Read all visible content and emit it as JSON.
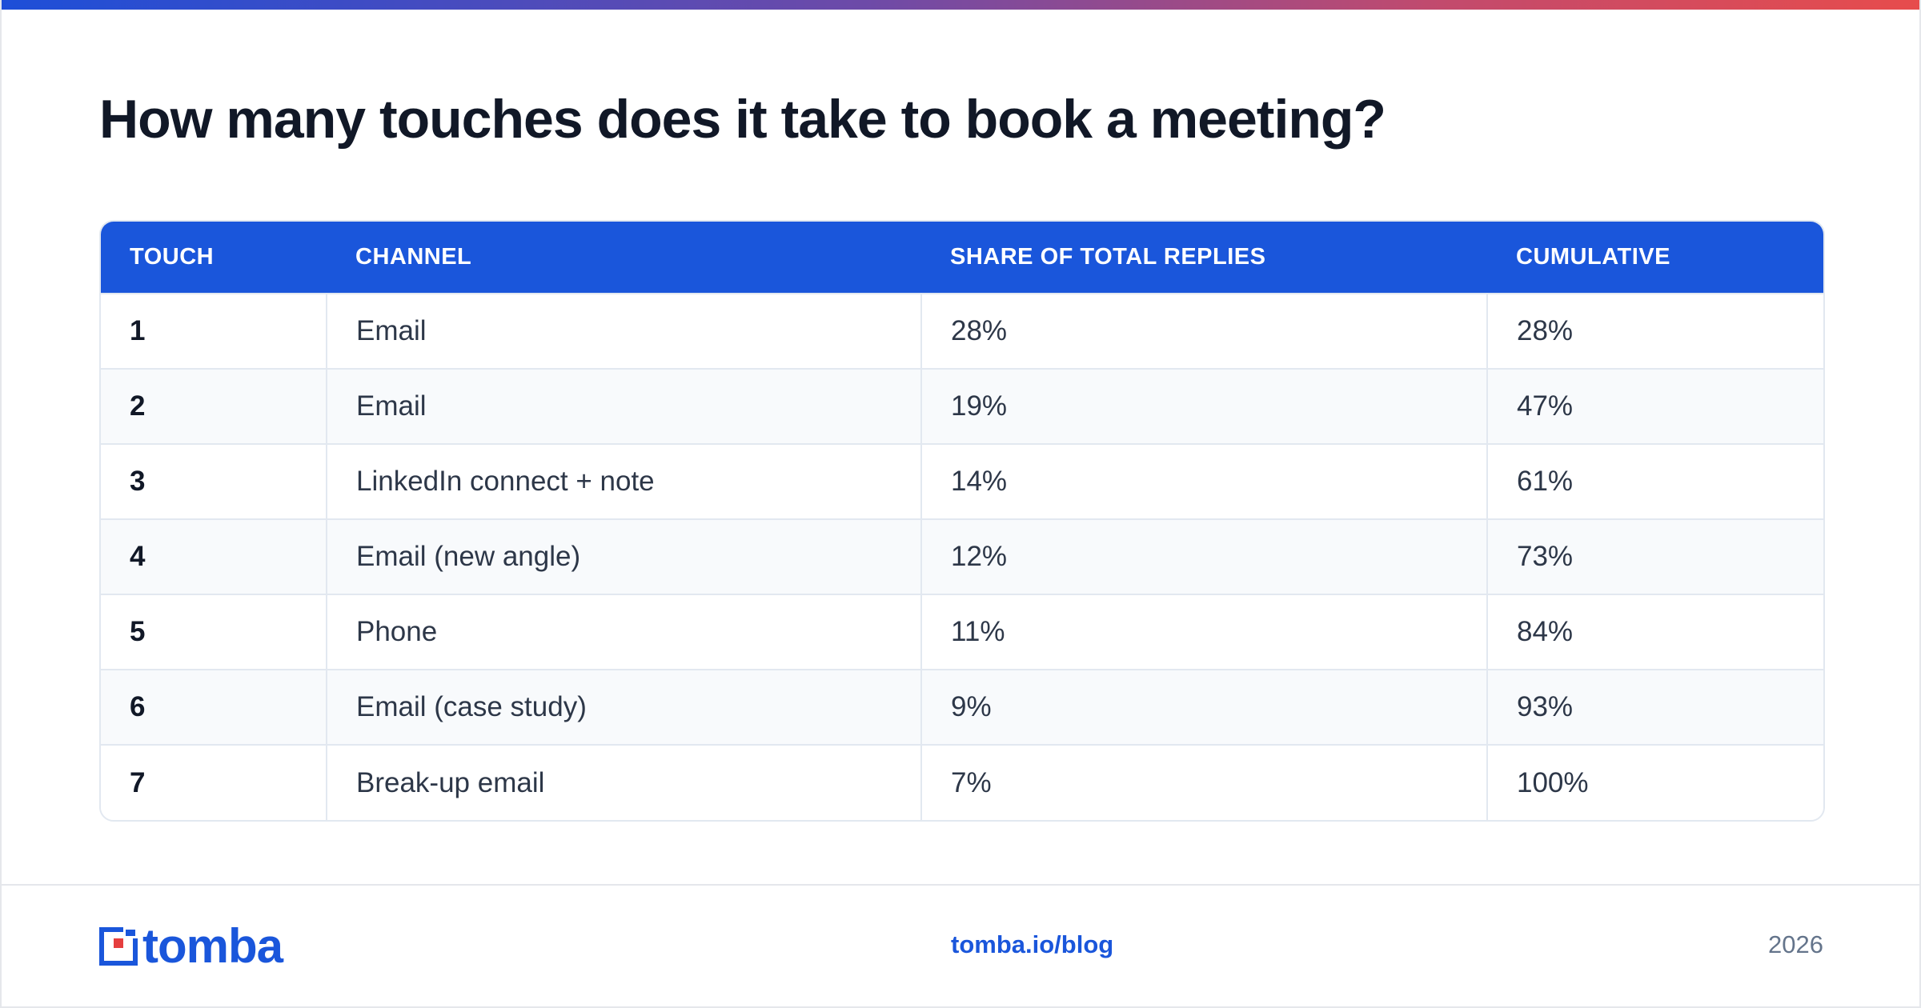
{
  "title": "How many touches does it take to book a meeting?",
  "table": {
    "headers": [
      "TOUCH",
      "CHANNEL",
      "SHARE OF TOTAL REPLIES",
      "CUMULATIVE"
    ],
    "rows": [
      {
        "touch": "1",
        "channel": "Email",
        "share": "28%",
        "cumulative": "28%"
      },
      {
        "touch": "2",
        "channel": "Email",
        "share": "19%",
        "cumulative": "47%"
      },
      {
        "touch": "3",
        "channel": "LinkedIn connect + note",
        "share": "14%",
        "cumulative": "61%"
      },
      {
        "touch": "4",
        "channel": "Email (new angle)",
        "share": "12%",
        "cumulative": "73%"
      },
      {
        "touch": "5",
        "channel": "Phone",
        "share": "11%",
        "cumulative": "84%"
      },
      {
        "touch": "6",
        "channel": "Email (case study)",
        "share": "9%",
        "cumulative": "93%"
      },
      {
        "touch": "7",
        "channel": "Break-up email",
        "share": "7%",
        "cumulative": "100%"
      }
    ]
  },
  "footer": {
    "logo_text": "tomba",
    "logo_icon": "tomba-logo-icon",
    "link": "tomba.io/blog",
    "year": "2026"
  },
  "colors": {
    "accent": "#1a56db",
    "logo_accent": "#e53e3e",
    "title": "#111827",
    "muted": "#64748b"
  }
}
